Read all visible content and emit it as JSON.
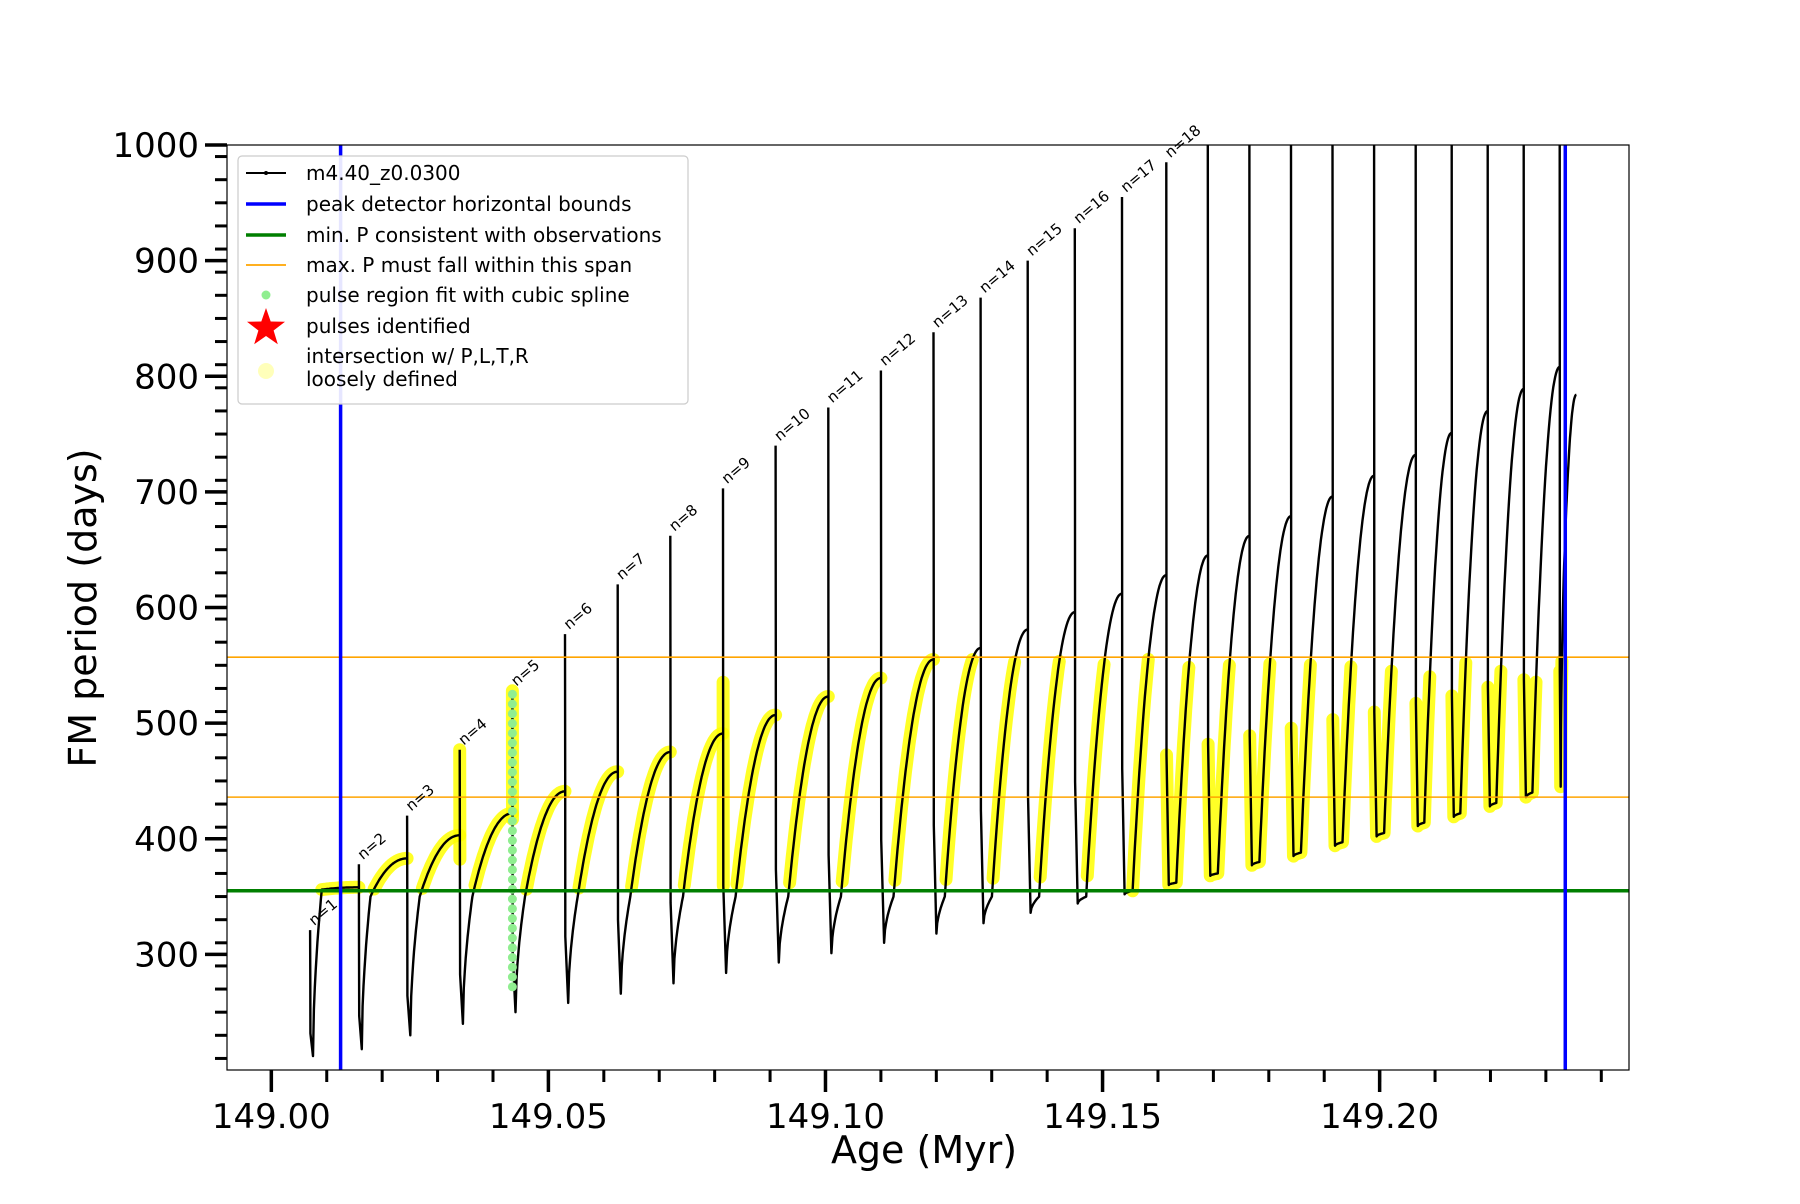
{
  "chart_data": {
    "type": "line",
    "title": "",
    "xlabel": "Age (Myr)",
    "ylabel": "FM period (days)",
    "xlim": [
      148.992,
      149.245
    ],
    "ylim": [
      200,
      1000
    ],
    "x_ticks": [
      149.0,
      149.05,
      149.1,
      149.15,
      149.2
    ],
    "x_tick_labels": [
      "149.00",
      "149.05",
      "149.10",
      "149.15",
      "149.20"
    ],
    "y_ticks": [
      300,
      400,
      500,
      600,
      700,
      800,
      900,
      1000
    ],
    "y_tick_labels": [
      "300",
      "400",
      "500",
      "600",
      "700",
      "800",
      "900",
      "1000"
    ],
    "grid": false,
    "legend_position": "top-left",
    "legend": [
      {
        "key": "track",
        "label": "m4.40_z0.0300",
        "color": "#000000",
        "style": "line-marker"
      },
      {
        "key": "bounds",
        "label": "peak detector horizontal bounds",
        "color": "#0000ff",
        "style": "line"
      },
      {
        "key": "minp",
        "label": "min. P consistent with observations",
        "color": "#007f00",
        "style": "line"
      },
      {
        "key": "maxp",
        "label": "max. P must fall within this span",
        "color": "#ffa500",
        "style": "thin-line"
      },
      {
        "key": "spline",
        "label": "pulse region fit with cubic spline",
        "color": "#90ee90",
        "style": "dot"
      },
      {
        "key": "pulses",
        "label": "pulses identified",
        "color": "#ff0000",
        "style": "star"
      },
      {
        "key": "intersect",
        "label": "intersection w/ P,L,T,R",
        "label2": "loosely defined",
        "color": "#ffff66",
        "style": "big-dot"
      }
    ],
    "vertical_lines": [
      {
        "x": 149.0125,
        "color": "#0000ff"
      },
      {
        "x": 149.2335,
        "color": "#0000ff"
      }
    ],
    "horizontal_lines": [
      {
        "y": 355,
        "color": "#007f00"
      },
      {
        "y": 436,
        "color": "#ffa500"
      },
      {
        "y": 557,
        "color": "#ffa500"
      }
    ],
    "pulses": [
      {
        "label": "n=1",
        "x_start": 149.007,
        "x_end": 149.0158,
        "y_min": 212,
        "y_peak": 321,
        "y_rise_end": 356,
        "y_end": 358
      },
      {
        "label": "n=2",
        "x_start": 149.0158,
        "x_end": 149.0245,
        "y_min": 218,
        "y_peak": 378,
        "y_rise_end": 350,
        "y_end": 383
      },
      {
        "label": "n=3",
        "x_start": 149.0245,
        "x_end": 149.034,
        "y_min": 230,
        "y_peak": 420,
        "y_rise_end": 350,
        "y_end": 403
      },
      {
        "label": "n=4",
        "x_start": 149.034,
        "x_end": 149.0435,
        "y_min": 240,
        "y_peak": 477,
        "y_rise_end": 350,
        "y_end": 422
      },
      {
        "label": "n=5",
        "x_start": 149.0435,
        "x_end": 149.053,
        "y_min": 250,
        "y_peak": 528,
        "y_rise_end": 350,
        "y_end": 441
      },
      {
        "label": "n=6",
        "x_start": 149.053,
        "x_end": 149.0625,
        "y_min": 258,
        "y_peak": 577,
        "y_rise_end": 350,
        "y_end": 458
      },
      {
        "label": "n=7",
        "x_start": 149.0625,
        "x_end": 149.072,
        "y_min": 266,
        "y_peak": 620,
        "y_rise_end": 350,
        "y_end": 475
      },
      {
        "label": "n=8",
        "x_start": 149.072,
        "x_end": 149.0815,
        "y_min": 275,
        "y_peak": 662,
        "y_rise_end": 350,
        "y_end": 491
      },
      {
        "label": "n=9",
        "x_start": 149.0815,
        "x_end": 149.091,
        "y_min": 284,
        "y_peak": 703,
        "y_rise_end": 350,
        "y_end": 507
      },
      {
        "label": "n=10",
        "x_start": 149.091,
        "x_end": 149.1005,
        "y_min": 293,
        "y_peak": 740,
        "y_rise_end": 350,
        "y_end": 523
      },
      {
        "label": "n=11",
        "x_start": 149.1005,
        "x_end": 149.11,
        "y_min": 301,
        "y_peak": 773,
        "y_rise_end": 350,
        "y_end": 539
      },
      {
        "label": "n=12",
        "x_start": 149.11,
        "x_end": 149.1195,
        "y_min": 310,
        "y_peak": 805,
        "y_rise_end": 350,
        "y_end": 555
      },
      {
        "label": "n=13",
        "x_start": 149.1195,
        "x_end": 149.128,
        "y_min": 318,
        "y_peak": 838,
        "y_rise_end": 350,
        "y_end": 565
      },
      {
        "label": "n=14",
        "x_start": 149.128,
        "x_end": 149.1365,
        "y_min": 327,
        "y_peak": 868,
        "y_rise_end": 350,
        "y_end": 581
      },
      {
        "label": "n=15",
        "x_start": 149.1365,
        "x_end": 149.145,
        "y_min": 336,
        "y_peak": 900,
        "y_rise_end": 350,
        "y_end": 596
      },
      {
        "label": "n=16",
        "x_start": 149.145,
        "x_end": 149.1535,
        "y_min": 344,
        "y_peak": 928,
        "y_rise_end": 350,
        "y_end": 612
      },
      {
        "label": "n=17",
        "x_start": 149.1535,
        "x_end": 149.1615,
        "y_min": 352,
        "y_peak": 955,
        "y_rise_end": 355,
        "y_end": 628
      },
      {
        "label": "n=18",
        "x_start": 149.1615,
        "x_end": 149.169,
        "y_min": 360,
        "y_peak": 985,
        "y_rise_end": 362,
        "y_end": 645
      },
      {
        "label": "",
        "x_start": 149.169,
        "x_end": 149.1765,
        "y_min": 368,
        "y_peak": 1000,
        "y_rise_end": 370,
        "y_end": 662
      },
      {
        "label": "",
        "x_start": 149.1765,
        "x_end": 149.184,
        "y_min": 377,
        "y_peak": 1000,
        "y_rise_end": 380,
        "y_end": 679
      },
      {
        "label": "",
        "x_start": 149.184,
        "x_end": 149.1915,
        "y_min": 385,
        "y_peak": 1000,
        "y_rise_end": 388,
        "y_end": 696
      },
      {
        "label": "",
        "x_start": 149.1915,
        "x_end": 149.199,
        "y_min": 394,
        "y_peak": 1000,
        "y_rise_end": 397,
        "y_end": 714
      },
      {
        "label": "",
        "x_start": 149.199,
        "x_end": 149.2065,
        "y_min": 402,
        "y_peak": 1000,
        "y_rise_end": 405,
        "y_end": 732
      },
      {
        "label": "",
        "x_start": 149.2065,
        "x_end": 149.213,
        "y_min": 411,
        "y_peak": 1000,
        "y_rise_end": 414,
        "y_end": 751
      },
      {
        "label": "",
        "x_start": 149.213,
        "x_end": 149.2195,
        "y_min": 419,
        "y_peak": 1000,
        "y_rise_end": 422,
        "y_end": 770
      },
      {
        "label": "",
        "x_start": 149.2195,
        "x_end": 149.226,
        "y_min": 428,
        "y_peak": 1000,
        "y_rise_end": 431,
        "y_end": 789
      },
      {
        "label": "",
        "x_start": 149.226,
        "x_end": 149.2325,
        "y_min": 436,
        "y_peak": 1000,
        "y_rise_end": 440,
        "y_end": 808
      },
      {
        "label": "",
        "x_start": 149.2325,
        "x_end": 149.2355,
        "y_min": 445,
        "y_peak": 1000,
        "y_rise_end": 625,
        "y_end": 784
      }
    ],
    "spline_region": {
      "x": 149.0435,
      "y_from": 272,
      "y_to": 525
    }
  }
}
